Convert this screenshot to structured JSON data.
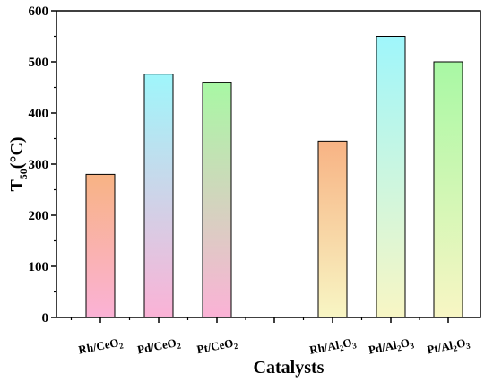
{
  "chart_data": {
    "type": "bar",
    "xlabel": "Catalysts",
    "ylabel": {
      "main": "T",
      "sub": "50",
      "unit": "(°C)"
    },
    "ylim": [
      0,
      600
    ],
    "yticks": [
      0,
      100,
      200,
      300,
      400,
      500,
      600
    ],
    "grid": false,
    "legend": "none",
    "bars": [
      {
        "label": {
          "main": "Rh/CeO",
          "sub": "2"
        },
        "value": 280,
        "gradient": [
          "#f8b384",
          "#fbb2d6"
        ]
      },
      {
        "label": {
          "main": "Pd/CeO",
          "sub": "2"
        },
        "value": 476,
        "gradient": [
          "#9ff6fb",
          "#fbb2d6"
        ]
      },
      {
        "label": {
          "main": "Pt/CeO",
          "sub": "2"
        },
        "value": 459,
        "gradient": [
          "#a8f8a4",
          "#fbb2d6"
        ]
      },
      {
        "label": {
          "main": "Rh/Al",
          "sub": "2",
          "main2": "O",
          "sub2": "3"
        },
        "value": 345,
        "gradient": [
          "#f8b384",
          "#f8f6c4"
        ]
      },
      {
        "label": {
          "main": "Pd/Al",
          "sub": "2",
          "main2": "O",
          "sub2": "3"
        },
        "value": 550,
        "gradient": [
          "#9ff6fb",
          "#f8f6c4"
        ]
      },
      {
        "label": {
          "main": "Pt/Al",
          "sub": "2",
          "main2": "O",
          "sub2": "3"
        },
        "value": 500,
        "gradient": [
          "#a8f8a4",
          "#f8f6c4"
        ]
      }
    ]
  }
}
